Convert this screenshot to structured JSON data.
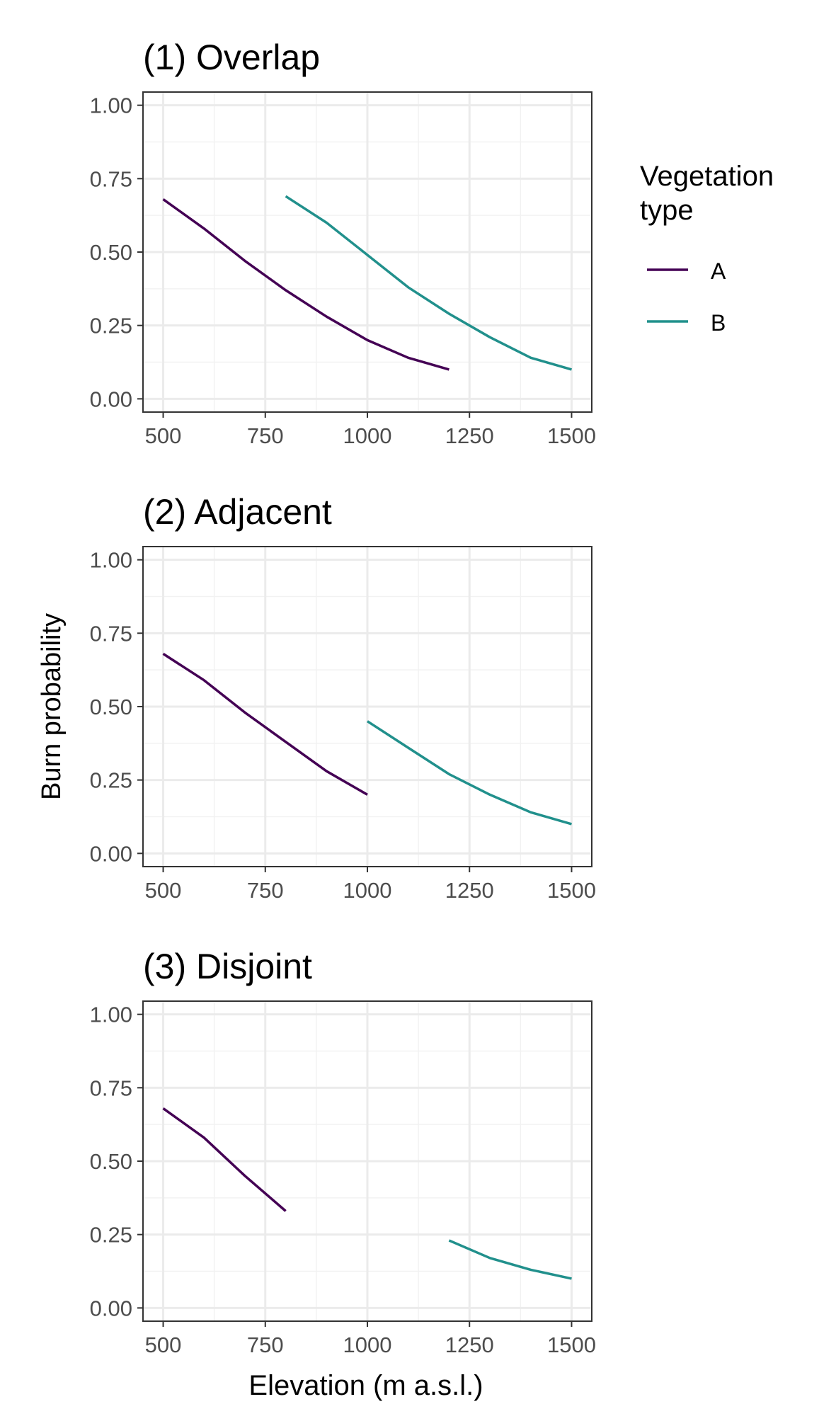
{
  "figure": {
    "ylabel": "Burn probability",
    "xlabel": "Elevation (m a.s.l.)"
  },
  "legend": {
    "title_line1": "Vegetation",
    "title_line2": "type",
    "items": [
      {
        "label": "A",
        "color": "#440154"
      },
      {
        "label": "B",
        "color": "#21908C"
      }
    ]
  },
  "chart_data": [
    {
      "type": "line",
      "title": "(1) Overlap",
      "xlim": [
        500,
        1500
      ],
      "ylim": [
        0,
        1
      ],
      "x_ticks": [
        "500",
        "750",
        "1000",
        "1250",
        "1500"
      ],
      "y_ticks": [
        "0.00",
        "0.25",
        "0.50",
        "0.75",
        "1.00"
      ],
      "grid": true,
      "series": [
        {
          "name": "A",
          "color": "#440154",
          "x": [
            500,
            600,
            700,
            800,
            900,
            1000,
            1100,
            1200
          ],
          "y": [
            0.68,
            0.58,
            0.47,
            0.37,
            0.28,
            0.2,
            0.14,
            0.1
          ]
        },
        {
          "name": "B",
          "color": "#21908C",
          "x": [
            800,
            900,
            1000,
            1100,
            1200,
            1300,
            1400,
            1500
          ],
          "y": [
            0.69,
            0.6,
            0.49,
            0.38,
            0.29,
            0.21,
            0.14,
            0.1
          ]
        }
      ]
    },
    {
      "type": "line",
      "title": "(2) Adjacent",
      "xlim": [
        500,
        1500
      ],
      "ylim": [
        0,
        1
      ],
      "x_ticks": [
        "500",
        "750",
        "1000",
        "1250",
        "1500"
      ],
      "y_ticks": [
        "0.00",
        "0.25",
        "0.50",
        "0.75",
        "1.00"
      ],
      "grid": true,
      "series": [
        {
          "name": "A",
          "color": "#440154",
          "x": [
            500,
            600,
            700,
            800,
            900,
            1000
          ],
          "y": [
            0.68,
            0.59,
            0.48,
            0.38,
            0.28,
            0.2
          ]
        },
        {
          "name": "B",
          "color": "#21908C",
          "x": [
            1000,
            1100,
            1200,
            1300,
            1400,
            1500
          ],
          "y": [
            0.45,
            0.36,
            0.27,
            0.2,
            0.14,
            0.1
          ]
        }
      ]
    },
    {
      "type": "line",
      "title": "(3) Disjoint",
      "xlim": [
        500,
        1500
      ],
      "ylim": [
        0,
        1
      ],
      "x_ticks": [
        "500",
        "750",
        "1000",
        "1250",
        "1500"
      ],
      "y_ticks": [
        "0.00",
        "0.25",
        "0.50",
        "0.75",
        "1.00"
      ],
      "grid": true,
      "series": [
        {
          "name": "A",
          "color": "#440154",
          "x": [
            500,
            600,
            700,
            800
          ],
          "y": [
            0.68,
            0.58,
            0.45,
            0.33
          ]
        },
        {
          "name": "B",
          "color": "#21908C",
          "x": [
            1200,
            1300,
            1400,
            1500
          ],
          "y": [
            0.23,
            0.17,
            0.13,
            0.1
          ]
        }
      ]
    }
  ]
}
